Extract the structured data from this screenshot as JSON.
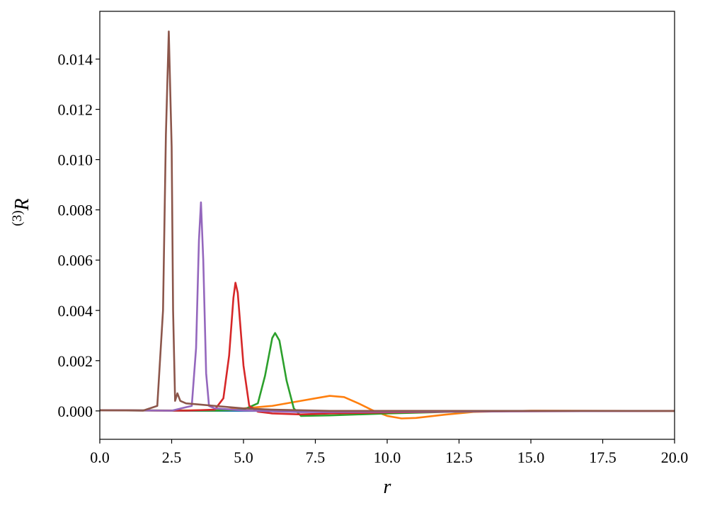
{
  "chart_data": {
    "type": "line",
    "xlabel": "r",
    "ylabel_superscript": "(3)",
    "ylabel": "R",
    "xlim": [
      0,
      20
    ],
    "ylim": [
      -0.00113,
      0.0159
    ],
    "xticks": [
      {
        "value": 0,
        "label": "0.0"
      },
      {
        "value": 2.5,
        "label": "2.5"
      },
      {
        "value": 5,
        "label": "5.0"
      },
      {
        "value": 7.5,
        "label": "7.5"
      },
      {
        "value": 10,
        "label": "10.0"
      },
      {
        "value": 12.5,
        "label": "12.5"
      },
      {
        "value": 15,
        "label": "15.0"
      },
      {
        "value": 17.5,
        "label": "17.5"
      },
      {
        "value": 20,
        "label": "20.0"
      }
    ],
    "yticks": [
      {
        "value": 0,
        "label": "0.000"
      },
      {
        "value": 0.002,
        "label": "0.002"
      },
      {
        "value": 0.004,
        "label": "0.004"
      },
      {
        "value": 0.006,
        "label": "0.006"
      },
      {
        "value": 0.008,
        "label": "0.008"
      },
      {
        "value": 0.01,
        "label": "0.010"
      },
      {
        "value": 0.012,
        "label": "0.012"
      },
      {
        "value": 0.014,
        "label": "0.014"
      }
    ],
    "series": [
      {
        "color": "#1f77b4",
        "x": [
          0,
          1,
          2,
          5,
          10,
          20
        ],
        "values": [
          3e-05,
          2e-05,
          1e-05,
          0,
          0,
          0
        ]
      },
      {
        "color": "#ff7f0e",
        "x": [
          0,
          2,
          4,
          5,
          6,
          7,
          7.5,
          8,
          8.5,
          9,
          9.5,
          10,
          10.5,
          11,
          12,
          13,
          15,
          20
        ],
        "values": [
          3e-05,
          1e-05,
          3e-05,
          0.0001,
          0.0002,
          0.0004,
          0.0005,
          0.0006,
          0.00055,
          0.0003,
          2e-05,
          -0.0002,
          -0.0003,
          -0.00028,
          -0.00015,
          -4e-05,
          1e-05,
          0
        ]
      },
      {
        "color": "#2ca02c",
        "x": [
          0,
          4,
          5,
          5.5,
          5.75,
          6,
          6.1,
          6.25,
          6.5,
          6.75,
          7,
          8,
          10,
          12,
          15,
          20
        ],
        "values": [
          3e-05,
          1e-05,
          5e-05,
          0.0003,
          0.0014,
          0.0029,
          0.0031,
          0.0028,
          0.0012,
          0.0001,
          -0.0002,
          -0.00018,
          -0.0001,
          -4e-05,
          0,
          0
        ]
      },
      {
        "color": "#d62728",
        "x": [
          0,
          3,
          4,
          4.3,
          4.5,
          4.65,
          4.72,
          4.8,
          5,
          5.2,
          5.5,
          6,
          7,
          8,
          10,
          13,
          20
        ],
        "values": [
          3e-05,
          1e-05,
          5e-05,
          0.0005,
          0.0022,
          0.0045,
          0.0051,
          0.0047,
          0.0018,
          0.0002,
          -3e-05,
          -0.0001,
          -0.00014,
          -0.0001,
          -6e-05,
          -2e-05,
          0
        ]
      },
      {
        "color": "#9467bd",
        "x": [
          0,
          2.5,
          3.2,
          3.35,
          3.45,
          3.52,
          3.6,
          3.7,
          3.8,
          4,
          5,
          7,
          10,
          20
        ],
        "values": [
          3e-05,
          1e-05,
          0.0002,
          0.0025,
          0.0068,
          0.0083,
          0.006,
          0.0015,
          0.0002,
          0.0001,
          2e-05,
          -5e-05,
          -3e-05,
          0
        ]
      },
      {
        "color": "#8c564b",
        "x": [
          0,
          1.5,
          2,
          2.2,
          2.3,
          2.4,
          2.5,
          2.55,
          2.62,
          2.7,
          2.8,
          3,
          3.5,
          4,
          5,
          6,
          8,
          20
        ],
        "values": [
          3e-05,
          1e-05,
          0.0002,
          0.004,
          0.011,
          0.0151,
          0.0105,
          0.004,
          0.0004,
          0.0007,
          0.0004,
          0.0003,
          0.00025,
          0.0002,
          0.0001,
          5e-05,
          0,
          0
        ]
      }
    ]
  }
}
